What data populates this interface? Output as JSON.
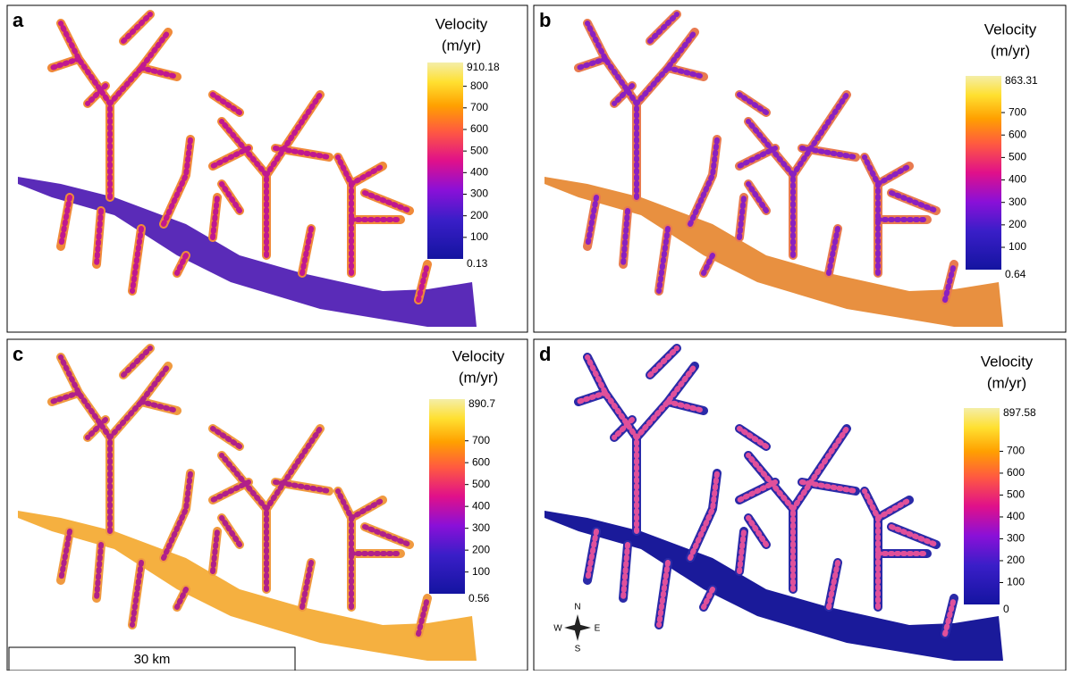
{
  "panels": [
    {
      "label": "a",
      "legend_title": "Velocity",
      "legend_unit": "(m/yr)",
      "max": 910.18,
      "min": 0.13,
      "ticks": [
        800,
        700,
        600,
        500,
        400,
        300,
        200,
        100
      ]
    },
    {
      "label": "b",
      "legend_title": "Velocity",
      "legend_unit": "(m/yr)",
      "max": 863.31,
      "min": 0.64,
      "ticks": [
        700,
        600,
        500,
        400,
        300,
        200,
        100
      ]
    },
    {
      "label": "c",
      "legend_title": "Velocity",
      "legend_unit": "(m/yr)",
      "max": 890.7,
      "min": 0.56,
      "ticks": [
        700,
        600,
        500,
        400,
        300,
        200,
        100
      ]
    },
    {
      "label": "d",
      "legend_title": "Velocity",
      "legend_unit": "(m/yr)",
      "max": 897.58,
      "min": 0,
      "ticks": [
        700,
        600,
        500,
        400,
        300,
        200,
        100
      ]
    }
  ],
  "scale_bar": "30 km",
  "compass": {
    "n": "N",
    "s": "S",
    "e": "E",
    "w": "W"
  }
}
